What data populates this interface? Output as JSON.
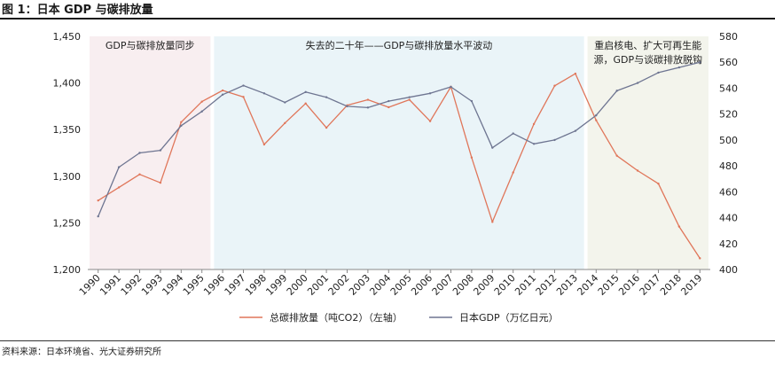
{
  "figure": {
    "title": "图 1：日本 GDP 与碳排放量",
    "source": "资料来源：日本环境省、光大证券研究所"
  },
  "colors": {
    "co2_line": "#e0765a",
    "gdp_line": "#6e7591",
    "period1_bg": "#f8eef0",
    "period2_bg": "#eaf4f8",
    "period3_bg": "#f3f4ec"
  },
  "chart_data": {
    "type": "line",
    "categories": [
      "1990",
      "1991",
      "1992",
      "1993",
      "1994",
      "1995",
      "1996",
      "1997",
      "1998",
      "1999",
      "2000",
      "2001",
      "2002",
      "2003",
      "2004",
      "2005",
      "2006",
      "2007",
      "2008",
      "2009",
      "2010",
      "2011",
      "2012",
      "2013",
      "2014",
      "2015",
      "2016",
      "2017",
      "2018",
      "2019"
    ],
    "series": [
      {
        "name": "总碳排放量（吨CO2）（左轴）",
        "axis": "left",
        "values": [
          1274,
          1288,
          1302,
          1293,
          1358,
          1380,
          1392,
          1385,
          1334,
          1357,
          1378,
          1352,
          1376,
          1382,
          1374,
          1382,
          1359,
          1396,
          1320,
          1251,
          1304,
          1356,
          1397,
          1410,
          1360,
          1322,
          1306,
          1292,
          1246,
          1212
        ]
      },
      {
        "name": "日本GDP（万亿日元）",
        "axis": "right",
        "values": [
          441,
          479,
          490,
          492,
          511,
          522,
          535,
          542,
          536,
          529,
          537,
          533,
          526,
          525,
          530,
          533,
          536,
          541,
          530,
          494,
          505,
          497,
          500,
          507,
          519,
          538,
          544,
          552,
          556,
          560
        ]
      }
    ],
    "left_axis": {
      "min": 1200,
      "max": 1450,
      "ticks": [
        "1,200",
        "1,250",
        "1,300",
        "1,350",
        "1,400",
        "1,450"
      ]
    },
    "right_axis": {
      "min": 400,
      "max": 580,
      "ticks": [
        "400",
        "420",
        "440",
        "460",
        "480",
        "500",
        "520",
        "540",
        "560",
        "580"
      ]
    },
    "periods": [
      {
        "label": "GDP与碳排放量同步",
        "start": "1990",
        "end": "1995"
      },
      {
        "label": "失去的二十年——GDP与碳排放量水平波动",
        "start": "1996",
        "end": "2013"
      },
      {
        "label_line1": "重启核电、扩大可再生能",
        "label_line2": "源，GDP与谈碳排放脱钩",
        "start": "2014",
        "end": "2019"
      }
    ],
    "legend": [
      {
        "label": "总碳排放量（吨CO2）（左轴）"
      },
      {
        "label": "日本GDP（万亿日元）"
      }
    ]
  }
}
